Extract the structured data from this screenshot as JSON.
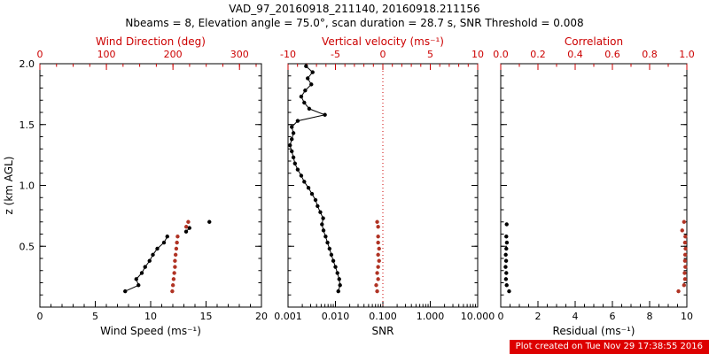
{
  "header": {
    "title": "VAD_97_20160918_211140, 20160918.211156",
    "subtitle": "Nbeams = 8, Elevation angle = 75.0°, scan duration = 28.7 s, SNR Threshold = 0.008"
  },
  "footer": {
    "created": "Plot created on Tue Nov 29 17:38:55 2016",
    "bg": "#dd0000",
    "fg": "#ffffff"
  },
  "colors": {
    "axis_red": "#cc0000",
    "data_red": "#b03324",
    "black": "#000000"
  },
  "chart_data": [
    {
      "type": "scatter",
      "panel": "wind",
      "y": {
        "label": "z (km AGL)",
        "range": [
          0,
          2
        ],
        "ticks": [
          0.5,
          1.0,
          1.5,
          2.0
        ],
        "tick_labels": [
          "0.5",
          "1.0",
          "1.5",
          "2.0"
        ],
        "minor": 5,
        "show_labels": true
      },
      "x_bottom": {
        "label": "Wind Speed (ms⁻¹)",
        "range": [
          0,
          20
        ],
        "ticks": [
          0,
          5,
          10,
          15,
          20
        ],
        "tick_labels": [
          "0",
          "5",
          "10",
          "15",
          "20"
        ],
        "minor": 5,
        "color": "#000000"
      },
      "x_top": {
        "label": "Wind Direction (deg)",
        "range": [
          0,
          333
        ],
        "ticks": [
          0,
          100,
          200,
          300
        ],
        "tick_labels": [
          "0",
          "100",
          "200",
          "300"
        ],
        "minor": 4,
        "color": "#cc0000"
      },
      "series": [
        {
          "name": "wind-speed",
          "axis": "bottom",
          "color": "#000000",
          "line": true,
          "z": [
            0.13,
            0.18,
            0.23,
            0.28,
            0.33,
            0.38,
            0.43,
            0.48,
            0.53,
            0.58
          ],
          "v": [
            7.7,
            8.9,
            8.7,
            9.2,
            9.5,
            9.9,
            10.2,
            10.6,
            11.2,
            11.5
          ]
        },
        {
          "name": "wind-speed-upper",
          "axis": "bottom",
          "color": "#000000",
          "line": true,
          "z": [
            0.62,
            0.65
          ],
          "v": [
            13.2,
            13.5
          ]
        },
        {
          "name": "wind-speed-top",
          "axis": "bottom",
          "color": "#000000",
          "line": false,
          "z": [
            0.7
          ],
          "v": [
            15.3
          ]
        },
        {
          "name": "wind-direction",
          "axis": "top",
          "color": "#b03324",
          "line": false,
          "z": [
            0.13,
            0.18,
            0.23,
            0.28,
            0.33,
            0.38,
            0.43,
            0.48,
            0.53,
            0.58
          ],
          "v": [
            199,
            200,
            201,
            202,
            203,
            203,
            204,
            205,
            206,
            207
          ]
        },
        {
          "name": "wind-direction-upper",
          "axis": "top",
          "color": "#b03324",
          "line": false,
          "z": [
            0.66,
            0.7
          ],
          "v": [
            220,
            223
          ]
        }
      ]
    },
    {
      "type": "scatter",
      "panel": "snr",
      "y": {
        "range": [
          0,
          2
        ],
        "ticks": [
          0.5,
          1.0,
          1.5,
          2.0
        ],
        "tick_labels": [
          "0.5",
          "1.0",
          "1.5",
          "2.0"
        ],
        "minor": 5,
        "show_labels": false
      },
      "x_bottom": {
        "label": "SNR",
        "scale": "log",
        "range": [
          0.001,
          10
        ],
        "ticks": [
          0.001,
          0.01,
          0.1,
          1,
          10
        ],
        "tick_labels": [
          "0.001",
          "0.010",
          "0.100",
          "1.000",
          "10.000"
        ],
        "color": "#000000"
      },
      "x_top": {
        "label": "Vertical velocity (ms⁻¹)",
        "range": [
          -10,
          10
        ],
        "ticks": [
          -10,
          -5,
          0,
          5,
          10
        ],
        "tick_labels": [
          "-10",
          "-5",
          "0",
          "5",
          "10"
        ],
        "minor": 5,
        "color": "#cc0000"
      },
      "vline": {
        "axis": "top",
        "v": 0,
        "color": "#cc0000"
      },
      "series": [
        {
          "name": "snr-profile",
          "axis": "bottom",
          "color": "#000000",
          "line": true,
          "z": [
            0.13,
            0.18,
            0.23,
            0.28,
            0.33,
            0.38,
            0.43,
            0.48,
            0.53,
            0.58,
            0.63,
            0.68,
            0.73,
            0.78,
            0.83,
            0.88,
            0.93,
            0.98,
            1.03,
            1.08,
            1.13,
            1.18,
            1.23,
            1.28,
            1.33,
            1.38,
            1.43,
            1.48,
            1.53,
            1.58,
            1.63,
            1.68,
            1.73,
            1.78,
            1.83,
            1.88,
            1.93,
            1.98
          ],
          "v": [
            0.0115,
            0.0125,
            0.012,
            0.011,
            0.01,
            0.009,
            0.0082,
            0.0075,
            0.0068,
            0.0062,
            0.0056,
            0.0052,
            0.0055,
            0.0048,
            0.0042,
            0.0038,
            0.0032,
            0.0027,
            0.0022,
            0.0019,
            0.0016,
            0.0014,
            0.0013,
            0.0012,
            0.0011,
            0.0012,
            0.0013,
            0.0012,
            0.0016,
            0.006,
            0.0028,
            0.0022,
            0.0019,
            0.0023,
            0.0031,
            0.0026,
            0.0033,
            0.0024
          ]
        },
        {
          "name": "vertical-velocity",
          "axis": "top",
          "color": "#b03324",
          "line": false,
          "z": [
            0.13,
            0.18,
            0.23,
            0.28,
            0.33,
            0.38,
            0.43,
            0.48,
            0.53,
            0.58
          ],
          "v": [
            -0.6,
            -0.7,
            -0.5,
            -0.6,
            -0.5,
            -0.4,
            -0.5,
            -0.4,
            -0.5,
            -0.5
          ]
        },
        {
          "name": "vertical-velocity-upper",
          "axis": "top",
          "color": "#b03324",
          "line": false,
          "z": [
            0.66,
            0.7
          ],
          "v": [
            -0.5,
            -0.6
          ]
        }
      ]
    },
    {
      "type": "scatter",
      "panel": "residual",
      "y": {
        "range": [
          0,
          2
        ],
        "ticks": [
          0.5,
          1.0,
          1.5,
          2.0
        ],
        "tick_labels": [
          "0.5",
          "1.0",
          "1.5",
          "2.0"
        ],
        "minor": 5,
        "show_labels": false
      },
      "x_bottom": {
        "label": "Residual (ms⁻¹)",
        "range": [
          0,
          10
        ],
        "ticks": [
          0,
          2,
          4,
          6,
          8,
          10
        ],
        "tick_labels": [
          "0",
          "2",
          "4",
          "6",
          "8",
          "10"
        ],
        "minor": 4,
        "color": "#000000"
      },
      "x_top": {
        "label": "Correlation",
        "range": [
          0,
          1
        ],
        "ticks": [
          0.0,
          0.2,
          0.4,
          0.6,
          0.8,
          1.0
        ],
        "tick_labels": [
          "0.0",
          "0.2",
          "0.4",
          "0.6",
          "0.8",
          "1.0"
        ],
        "minor": 2,
        "color": "#cc0000"
      },
      "series": [
        {
          "name": "residual",
          "axis": "bottom",
          "color": "#000000",
          "line": false,
          "z": [
            0.13,
            0.18,
            0.23,
            0.28,
            0.33,
            0.38,
            0.43,
            0.48,
            0.53,
            0.58
          ],
          "v": [
            0.45,
            0.32,
            0.28,
            0.3,
            0.26,
            0.29,
            0.27,
            0.3,
            0.33,
            0.3
          ]
        },
        {
          "name": "residual-upper",
          "axis": "bottom",
          "color": "#000000",
          "line": false,
          "z": [
            0.68
          ],
          "v": [
            0.32
          ]
        },
        {
          "name": "correlation",
          "axis": "top",
          "color": "#b03324",
          "line": false,
          "z": [
            0.13,
            0.18,
            0.23,
            0.28,
            0.33,
            0.38,
            0.43,
            0.48,
            0.53,
            0.58
          ],
          "v": [
            0.955,
            0.985,
            0.99,
            0.988,
            0.992,
            0.99,
            0.991,
            0.993,
            0.99,
            0.992
          ]
        },
        {
          "name": "correlation-upper",
          "axis": "top",
          "color": "#b03324",
          "line": false,
          "z": [
            0.63,
            0.7
          ],
          "v": [
            0.975,
            0.985
          ]
        }
      ]
    }
  ]
}
